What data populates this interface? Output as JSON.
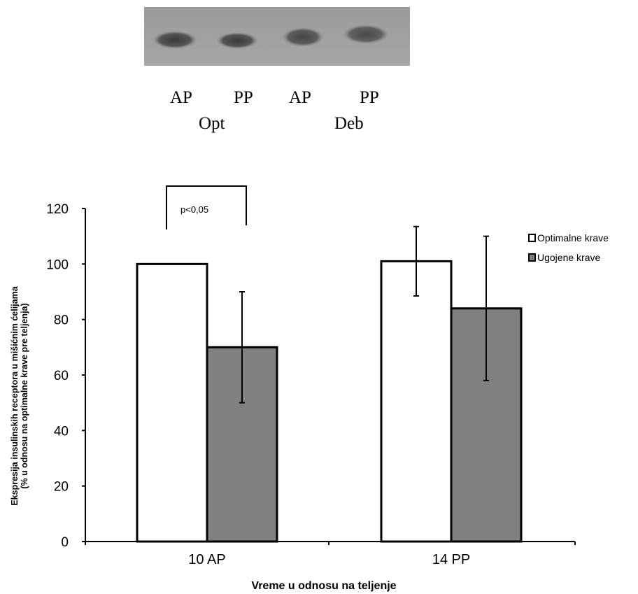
{
  "blot": {
    "lanes": [
      "AP",
      "PP",
      "AP",
      "PP"
    ],
    "groups": [
      "Opt",
      "Deb"
    ]
  },
  "chart_data": {
    "type": "bar",
    "categories": [
      "10 AP",
      "14 PP"
    ],
    "series": [
      {
        "name": "Optimalne krave",
        "values": [
          100,
          101
        ],
        "errors": [
          0,
          12.5
        ],
        "color": "#ffffff"
      },
      {
        "name": "Ugojene krave",
        "values": [
          70,
          84
        ],
        "errors": [
          20,
          26
        ],
        "color": "#808080"
      }
    ],
    "xlabel": "Vreme u odnosu na teljenje",
    "ylabel_lines": [
      "Ekspresija insulinskih receptora u mišićnim ćelijama",
      "(% u odnosu na optimalne krave pre teljenja)"
    ],
    "ylim": [
      0,
      120
    ],
    "yticks": [
      0,
      20,
      40,
      60,
      80,
      100,
      120
    ],
    "grid": false,
    "legend_position": "right",
    "annotation": {
      "text": "p<0,05",
      "category": "10 AP"
    }
  }
}
